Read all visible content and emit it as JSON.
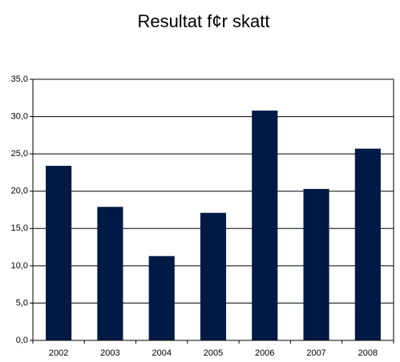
{
  "chart_data": {
    "type": "bar",
    "title": "Resultat f¢r skatt",
    "categories": [
      "2002",
      "2003",
      "2004",
      "2005",
      "2006",
      "2007",
      "2008"
    ],
    "values": [
      23.4,
      17.9,
      11.3,
      17.1,
      30.8,
      20.3,
      25.7
    ],
    "color": "#001a45",
    "ylim": [
      0,
      35
    ],
    "yticks": [
      {
        "value": 0,
        "label": "0,0"
      },
      {
        "value": 5,
        "label": "5,0"
      },
      {
        "value": 10,
        "label": "10,0"
      },
      {
        "value": 15,
        "label": "15,0"
      },
      {
        "value": 20,
        "label": "20,0"
      },
      {
        "value": 25,
        "label": "25,0"
      },
      {
        "value": 30,
        "label": "30,0"
      },
      {
        "value": 35,
        "label": "35,0"
      }
    ],
    "grid": true
  }
}
